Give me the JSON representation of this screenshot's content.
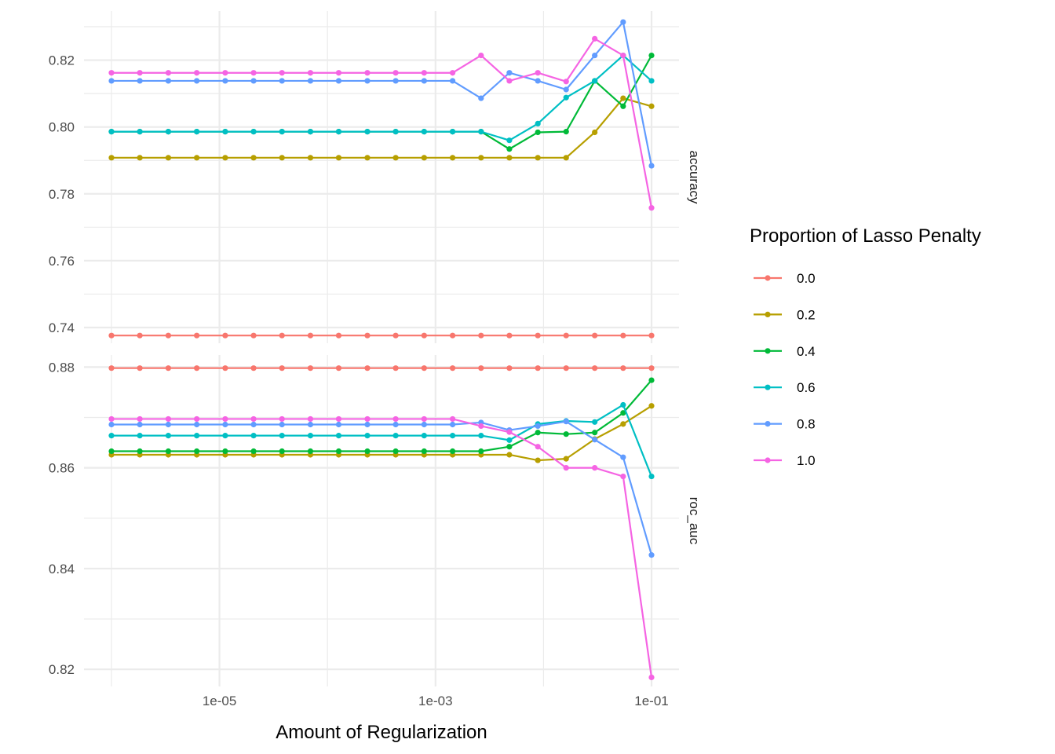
{
  "chart_data": {
    "type": "line",
    "xlabel": "Amount of Regularization",
    "x_scale": "log10",
    "x": [
      1e-06,
      1.83e-06,
      3.36e-06,
      6.16e-06,
      1.13e-05,
      2.07e-05,
      3.79e-05,
      6.95e-05,
      0.000127,
      0.000234,
      0.000428,
      0.000785,
      0.00144,
      0.00264,
      0.00483,
      0.00886,
      0.0162,
      0.0298,
      0.0546,
      0.1
    ],
    "x_ticks": [
      {
        "value": 1e-05,
        "label": "1e-05"
      },
      {
        "value": 0.001,
        "label": "1e-03"
      },
      {
        "value": 0.1,
        "label": "1e-01"
      }
    ],
    "legend": {
      "title": "Proportion of Lasso Penalty",
      "placement": "right",
      "entries": [
        "0.0",
        "0.2",
        "0.4",
        "0.6",
        "0.8",
        "1.0"
      ],
      "colors": [
        "#F8766D",
        "#B79F00",
        "#00BA38",
        "#00BFC4",
        "#619CFF",
        "#F564E3"
      ]
    },
    "facets": [
      {
        "label": "accuracy",
        "ylim": [
          0.7353,
          0.8347
        ],
        "y_ticks": [
          0.74,
          0.76,
          0.78,
          0.8,
          0.82
        ],
        "series": [
          {
            "name": "0.0",
            "values": [
              0.7376,
              0.7376,
              0.7376,
              0.7376,
              0.7376,
              0.7376,
              0.7376,
              0.7376,
              0.7376,
              0.7376,
              0.7376,
              0.7376,
              0.7376,
              0.7376,
              0.7376,
              0.7376,
              0.7376,
              0.7376,
              0.7376,
              0.7376
            ]
          },
          {
            "name": "0.2",
            "values": [
              0.7908,
              0.7908,
              0.7908,
              0.7908,
              0.7908,
              0.7908,
              0.7908,
              0.7908,
              0.7908,
              0.7908,
              0.7908,
              0.7908,
              0.7908,
              0.7908,
              0.7908,
              0.7908,
              0.7908,
              0.7984,
              0.8086,
              0.8062
            ]
          },
          {
            "name": "0.4",
            "values": [
              0.7986,
              0.7986,
              0.7986,
              0.7986,
              0.7986,
              0.7986,
              0.7986,
              0.7986,
              0.7986,
              0.7986,
              0.7986,
              0.7986,
              0.7986,
              0.7986,
              0.7934,
              0.7984,
              0.7986,
              0.8138,
              0.8062,
              0.8214
            ]
          },
          {
            "name": "0.6",
            "values": [
              0.7986,
              0.7986,
              0.7986,
              0.7986,
              0.7986,
              0.7986,
              0.7986,
              0.7986,
              0.7986,
              0.7986,
              0.7986,
              0.7986,
              0.7986,
              0.7986,
              0.796,
              0.801,
              0.8088,
              0.8138,
              0.8214,
              0.8138
            ]
          },
          {
            "name": "0.8",
            "values": [
              0.8138,
              0.8138,
              0.8138,
              0.8138,
              0.8138,
              0.8138,
              0.8138,
              0.8138,
              0.8138,
              0.8138,
              0.8138,
              0.8138,
              0.8138,
              0.8086,
              0.8162,
              0.8138,
              0.8112,
              0.8214,
              0.8314,
              0.7884
            ]
          },
          {
            "name": "1.0",
            "values": [
              0.8162,
              0.8162,
              0.8162,
              0.8162,
              0.8162,
              0.8162,
              0.8162,
              0.8162,
              0.8162,
              0.8162,
              0.8162,
              0.8162,
              0.8162,
              0.8214,
              0.8138,
              0.8162,
              0.8136,
              0.8264,
              0.8214,
              0.7758
            ]
          }
        ]
      },
      {
        "label": "roc_auc",
        "ylim": [
          0.8166,
          0.8824
        ],
        "y_ticks": [
          0.82,
          0.84,
          0.86,
          0.88
        ],
        "series": [
          {
            "name": "0.0",
            "values": [
              0.8798,
              0.8798,
              0.8798,
              0.8798,
              0.8798,
              0.8798,
              0.8798,
              0.8798,
              0.8798,
              0.8798,
              0.8798,
              0.8798,
              0.8798,
              0.8798,
              0.8798,
              0.8798,
              0.8798,
              0.8798,
              0.8798,
              0.8798
            ]
          },
          {
            "name": "0.2",
            "values": [
              0.8626,
              0.8626,
              0.8626,
              0.8626,
              0.8626,
              0.8626,
              0.8626,
              0.8626,
              0.8626,
              0.8626,
              0.8626,
              0.8626,
              0.8626,
              0.8626,
              0.8626,
              0.8615,
              0.8618,
              0.8657,
              0.8687,
              0.8723
            ]
          },
          {
            "name": "0.4",
            "values": [
              0.8633,
              0.8633,
              0.8633,
              0.8633,
              0.8633,
              0.8633,
              0.8633,
              0.8633,
              0.8633,
              0.8633,
              0.8633,
              0.8633,
              0.8633,
              0.8633,
              0.8642,
              0.867,
              0.8667,
              0.867,
              0.8709,
              0.8774
            ]
          },
          {
            "name": "0.6",
            "values": [
              0.8664,
              0.8664,
              0.8664,
              0.8664,
              0.8664,
              0.8664,
              0.8664,
              0.8664,
              0.8664,
              0.8664,
              0.8664,
              0.8664,
              0.8664,
              0.8664,
              0.8655,
              0.8687,
              0.8693,
              0.8691,
              0.8725,
              0.8583
            ]
          },
          {
            "name": "0.8",
            "values": [
              0.8686,
              0.8686,
              0.8686,
              0.8686,
              0.8686,
              0.8686,
              0.8686,
              0.8686,
              0.8686,
              0.8686,
              0.8686,
              0.8686,
              0.8686,
              0.869,
              0.8675,
              0.8683,
              0.8692,
              0.8656,
              0.8621,
              0.8427
            ]
          },
          {
            "name": "1.0",
            "values": [
              0.8697,
              0.8697,
              0.8697,
              0.8697,
              0.8697,
              0.8697,
              0.8697,
              0.8697,
              0.8697,
              0.8697,
              0.8697,
              0.8697,
              0.8697,
              0.8683,
              0.8671,
              0.8642,
              0.86,
              0.86,
              0.8583,
              0.8184
            ]
          }
        ]
      }
    ]
  }
}
